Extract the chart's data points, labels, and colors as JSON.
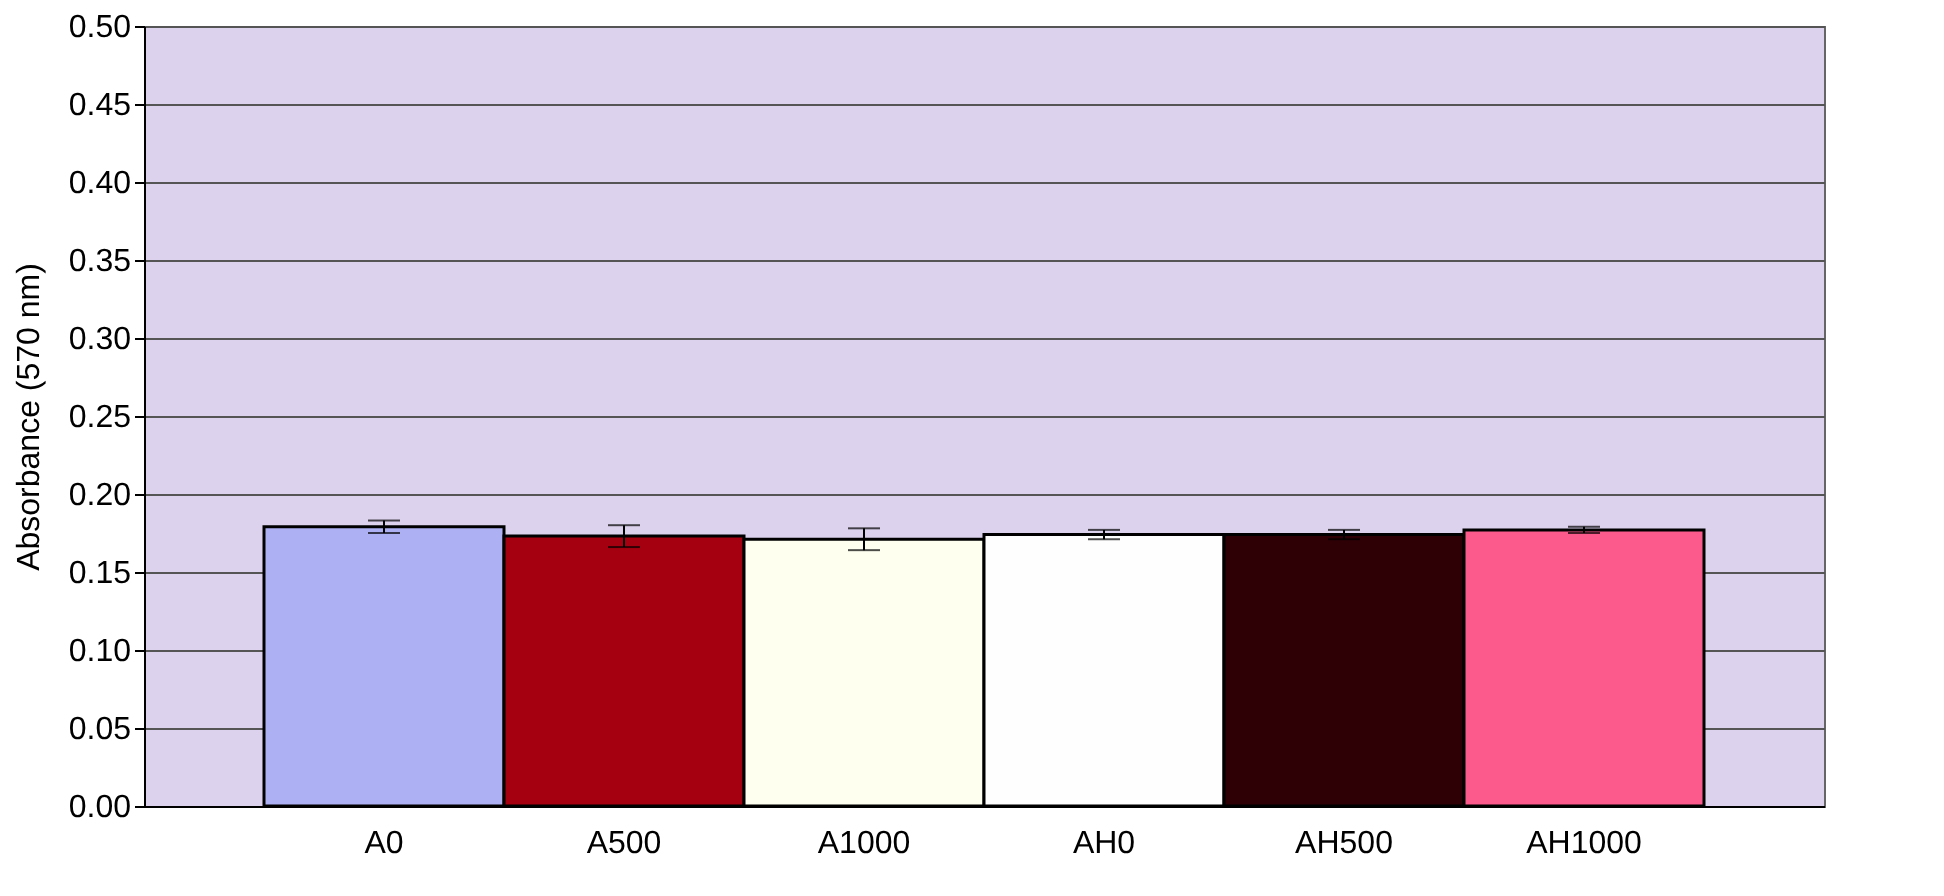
{
  "chart_data": {
    "type": "bar",
    "ylabel": "Absorbance (570 nm)",
    "categories": [
      "A0",
      "A500",
      "A1000",
      "AH0",
      "AH500",
      "AH1000"
    ],
    "values": [
      0.179,
      0.173,
      0.171,
      0.174,
      0.174,
      0.177
    ],
    "errors": [
      0.004,
      0.007,
      0.007,
      0.003,
      0.003,
      0.002
    ],
    "colors": [
      "#aeb0f4",
      "#a4000f",
      "#fffff0",
      "#fefefe",
      "#2e0006",
      "#fc5a8c"
    ],
    "ylim": [
      0,
      0.5
    ],
    "yticks": [
      {
        "value": 0,
        "label": "0.00"
      },
      {
        "value": 0.05,
        "label": "0.05"
      },
      {
        "value": 0.1,
        "label": "0.10"
      },
      {
        "value": 0.15,
        "label": "0.15"
      },
      {
        "value": 0.2,
        "label": "0.20"
      },
      {
        "value": 0.25,
        "label": "0.25"
      },
      {
        "value": 0.3,
        "label": "0.30"
      },
      {
        "value": 0.35,
        "label": "0.35"
      },
      {
        "value": 0.4,
        "label": "0.40"
      },
      {
        "value": 0.45,
        "label": "0.45"
      },
      {
        "value": 0.5,
        "label": "0.50"
      }
    ],
    "grid": "y"
  }
}
